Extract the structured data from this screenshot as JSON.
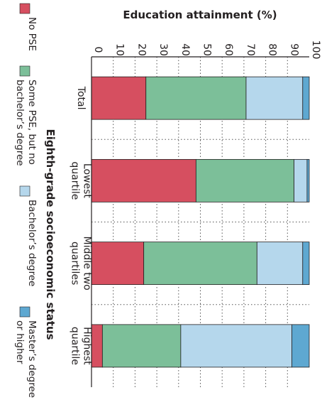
{
  "chart_data": {
    "type": "bar",
    "stacked": true,
    "orientation": "horizontal",
    "rotated": "90deg",
    "title": "",
    "xlabel": "Eighth-grade socioeconomic status",
    "ylabel": "Education attainment (%)",
    "ylim": [
      0,
      100
    ],
    "yticks": [
      "0",
      "10",
      "20",
      "30",
      "40",
      "50",
      "60",
      "70",
      "80",
      "90",
      "100"
    ],
    "grid": "dotted, at every tick",
    "categories": [
      [
        "Total"
      ],
      [
        "Lowest",
        "quartile"
      ],
      [
        "Middle two",
        "quartiles"
      ],
      [
        "Highest",
        "quartile"
      ]
    ],
    "series": [
      {
        "name": "No PSE",
        "legend_lines": [
          "No PSE"
        ],
        "color": "#d64f60",
        "values": [
          25,
          48,
          24,
          5
        ]
      },
      {
        "name": "Some PSE, but no bachelor’s degree",
        "legend_lines": [
          "Some PSE, but no",
          "bachelor’s degree"
        ],
        "color": "#7cbf99",
        "values": [
          46,
          45,
          52,
          36
        ]
      },
      {
        "name": "Bachelor’s degree",
        "legend_lines": [
          "Bachelor’s degree"
        ],
        "color": "#b5d7ec",
        "values": [
          26,
          6,
          21,
          51
        ]
      },
      {
        "name": "Master’s degree or higher",
        "legend_lines": [
          "Master’s degree",
          "or higher"
        ],
        "color": "#5ea8d1",
        "values": [
          3,
          1,
          3,
          8
        ]
      }
    ],
    "legend_position": "left side"
  }
}
